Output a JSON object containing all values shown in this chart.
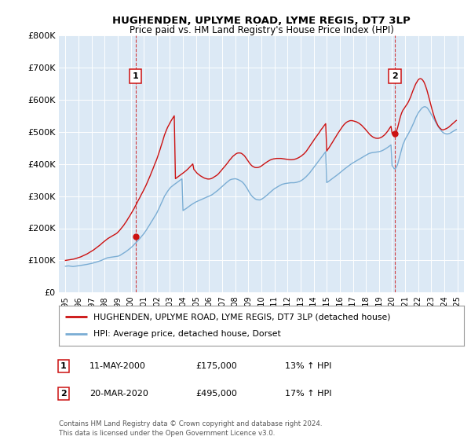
{
  "title": "HUGHENDEN, UPLYME ROAD, LYME REGIS, DT7 3LP",
  "subtitle": "Price paid vs. HM Land Registry's House Price Index (HPI)",
  "background_color": "#ffffff",
  "plot_bg_color": "#dce9f5",
  "grid_color": "#ffffff",
  "house_color": "#cc1111",
  "hpi_color": "#7aadd4",
  "sale1_x": 2000.37,
  "sale1_price": 175000,
  "sale2_x": 2020.22,
  "sale2_price": 495000,
  "legend_house": "HUGHENDEN, UPLYME ROAD, LYME REGIS, DT7 3LP (detached house)",
  "legend_hpi": "HPI: Average price, detached house, Dorset",
  "table_rows": [
    {
      "num": "1",
      "date": "11-MAY-2000",
      "price": "£175,000",
      "hpi": "13% ↑ HPI"
    },
    {
      "num": "2",
      "date": "20-MAR-2020",
      "price": "£495,000",
      "hpi": "17% ↑ HPI"
    }
  ],
  "footer": "Contains HM Land Registry data © Crown copyright and database right 2024.\nThis data is licensed under the Open Government Licence v3.0.",
  "ylim": [
    0,
    800000
  ],
  "yticks": [
    0,
    100000,
    200000,
    300000,
    400000,
    500000,
    600000,
    700000,
    800000
  ],
  "ytick_labels": [
    "£0",
    "£100K",
    "£200K",
    "£300K",
    "£400K",
    "£500K",
    "£600K",
    "£700K",
    "£800K"
  ],
  "hpi_years": [
    1995.0,
    1995.08,
    1995.17,
    1995.25,
    1995.33,
    1995.42,
    1995.5,
    1995.58,
    1995.67,
    1995.75,
    1995.83,
    1995.92,
    1996.0,
    1996.08,
    1996.17,
    1996.25,
    1996.33,
    1996.42,
    1996.5,
    1996.58,
    1996.67,
    1996.75,
    1996.83,
    1996.92,
    1997.0,
    1997.08,
    1997.17,
    1997.25,
    1997.33,
    1997.42,
    1997.5,
    1997.58,
    1997.67,
    1997.75,
    1997.83,
    1997.92,
    1998.0,
    1998.08,
    1998.17,
    1998.25,
    1998.33,
    1998.42,
    1998.5,
    1998.58,
    1998.67,
    1998.75,
    1998.83,
    1998.92,
    1999.0,
    1999.08,
    1999.17,
    1999.25,
    1999.33,
    1999.42,
    1999.5,
    1999.58,
    1999.67,
    1999.75,
    1999.83,
    1999.92,
    2000.0,
    2000.08,
    2000.17,
    2000.25,
    2000.33,
    2000.42,
    2000.5,
    2000.58,
    2000.67,
    2000.75,
    2000.83,
    2000.92,
    2001.0,
    2001.08,
    2001.17,
    2001.25,
    2001.33,
    2001.42,
    2001.5,
    2001.58,
    2001.67,
    2001.75,
    2001.83,
    2001.92,
    2002.0,
    2002.08,
    2002.17,
    2002.25,
    2002.33,
    2002.42,
    2002.5,
    2002.58,
    2002.67,
    2002.75,
    2002.83,
    2002.92,
    2003.0,
    2003.08,
    2003.17,
    2003.25,
    2003.33,
    2003.42,
    2003.5,
    2003.58,
    2003.67,
    2003.75,
    2003.83,
    2003.92,
    2004.0,
    2004.08,
    2004.17,
    2004.25,
    2004.33,
    2004.42,
    2004.5,
    2004.58,
    2004.67,
    2004.75,
    2004.83,
    2004.92,
    2005.0,
    2005.08,
    2005.17,
    2005.25,
    2005.33,
    2005.42,
    2005.5,
    2005.58,
    2005.67,
    2005.75,
    2005.83,
    2005.92,
    2006.0,
    2006.08,
    2006.17,
    2006.25,
    2006.33,
    2006.42,
    2006.5,
    2006.58,
    2006.67,
    2006.75,
    2006.83,
    2006.92,
    2007.0,
    2007.08,
    2007.17,
    2007.25,
    2007.33,
    2007.42,
    2007.5,
    2007.58,
    2007.67,
    2007.75,
    2007.83,
    2007.92,
    2008.0,
    2008.08,
    2008.17,
    2008.25,
    2008.33,
    2008.42,
    2008.5,
    2008.58,
    2008.67,
    2008.75,
    2008.83,
    2008.92,
    2009.0,
    2009.08,
    2009.17,
    2009.25,
    2009.33,
    2009.42,
    2009.5,
    2009.58,
    2009.67,
    2009.75,
    2009.83,
    2009.92,
    2010.0,
    2010.08,
    2010.17,
    2010.25,
    2010.33,
    2010.42,
    2010.5,
    2010.58,
    2010.67,
    2010.75,
    2010.83,
    2010.92,
    2011.0,
    2011.08,
    2011.17,
    2011.25,
    2011.33,
    2011.42,
    2011.5,
    2011.58,
    2011.67,
    2011.75,
    2011.83,
    2011.92,
    2012.0,
    2012.08,
    2012.17,
    2012.25,
    2012.33,
    2012.42,
    2012.5,
    2012.58,
    2012.67,
    2012.75,
    2012.83,
    2012.92,
    2013.0,
    2013.08,
    2013.17,
    2013.25,
    2013.33,
    2013.42,
    2013.5,
    2013.58,
    2013.67,
    2013.75,
    2013.83,
    2013.92,
    2014.0,
    2014.08,
    2014.17,
    2014.25,
    2014.33,
    2014.42,
    2014.5,
    2014.58,
    2014.67,
    2014.75,
    2014.83,
    2014.92,
    2015.0,
    2015.08,
    2015.17,
    2015.25,
    2015.33,
    2015.42,
    2015.5,
    2015.58,
    2015.67,
    2015.75,
    2015.83,
    2015.92,
    2016.0,
    2016.08,
    2016.17,
    2016.25,
    2016.33,
    2016.42,
    2016.5,
    2016.58,
    2016.67,
    2016.75,
    2016.83,
    2016.92,
    2017.0,
    2017.08,
    2017.17,
    2017.25,
    2017.33,
    2017.42,
    2017.5,
    2017.58,
    2017.67,
    2017.75,
    2017.83,
    2017.92,
    2018.0,
    2018.08,
    2018.17,
    2018.25,
    2018.33,
    2018.42,
    2018.5,
    2018.58,
    2018.67,
    2018.75,
    2018.83,
    2018.92,
    2019.0,
    2019.08,
    2019.17,
    2019.25,
    2019.33,
    2019.42,
    2019.5,
    2019.58,
    2019.67,
    2019.75,
    2019.83,
    2019.92,
    2020.0,
    2020.08,
    2020.17,
    2020.25,
    2020.33,
    2020.42,
    2020.5,
    2020.58,
    2020.67,
    2020.75,
    2020.83,
    2020.92,
    2021.0,
    2021.08,
    2021.17,
    2021.25,
    2021.33,
    2021.42,
    2021.5,
    2021.58,
    2021.67,
    2021.75,
    2021.83,
    2021.92,
    2022.0,
    2022.08,
    2022.17,
    2022.25,
    2022.33,
    2022.42,
    2022.5,
    2022.58,
    2022.67,
    2022.75,
    2022.83,
    2022.92,
    2023.0,
    2023.08,
    2023.17,
    2023.25,
    2023.33,
    2023.42,
    2023.5,
    2023.58,
    2023.67,
    2023.75,
    2023.83,
    2023.92,
    2024.0,
    2024.08,
    2024.17,
    2024.25,
    2024.33,
    2024.42,
    2024.5,
    2024.58,
    2024.67,
    2024.75,
    2024.83,
    2024.92
  ],
  "hpi_vals": [
    82000,
    82500,
    82800,
    83000,
    82500,
    82000,
    81500,
    81000,
    81500,
    82000,
    82500,
    83000,
    83500,
    84000,
    84500,
    85000,
    85500,
    86000,
    86500,
    87000,
    87800,
    88500,
    89200,
    90000,
    90800,
    91500,
    92500,
    93500,
    94500,
    95500,
    96500,
    97500,
    98800,
    100000,
    101500,
    103000,
    104500,
    106000,
    107500,
    108500,
    109000,
    109500,
    110000,
    110500,
    111000,
    111500,
    112000,
    112500,
    113000,
    114000,
    115500,
    117500,
    119500,
    121500,
    123500,
    126000,
    128500,
    131000,
    133500,
    136000,
    139000,
    142000,
    145500,
    149000,
    152500,
    156000,
    159500,
    163000,
    167000,
    171000,
    175000,
    179000,
    183000,
    188000,
    193000,
    198000,
    203500,
    209000,
    214500,
    220000,
    225500,
    231000,
    236500,
    242000,
    248000,
    255000,
    262000,
    269500,
    277000,
    284500,
    292000,
    299500,
    305000,
    310500,
    315500,
    320000,
    324500,
    328000,
    331000,
    333500,
    336000,
    338500,
    341000,
    343500,
    346000,
    348500,
    351000,
    353500,
    255000,
    257000,
    259000,
    261500,
    264000,
    266500,
    269000,
    271500,
    274000,
    276000,
    278000,
    280000,
    282000,
    283500,
    285000,
    286500,
    288000,
    289500,
    291000,
    292500,
    294000,
    295500,
    297000,
    298500,
    300000,
    301500,
    303000,
    305000,
    307500,
    310000,
    312500,
    315000,
    318000,
    321000,
    324000,
    327000,
    330000,
    333000,
    336000,
    339000,
    342000,
    345000,
    348000,
    350000,
    351500,
    352500,
    353000,
    353500,
    354000,
    353000,
    352000,
    350500,
    349000,
    347000,
    345000,
    342000,
    338000,
    333500,
    328500,
    323000,
    317000,
    311000,
    305500,
    301000,
    297500,
    294500,
    292000,
    290000,
    289000,
    288500,
    288000,
    288500,
    290000,
    292000,
    294500,
    297000,
    299500,
    302500,
    305500,
    308500,
    311500,
    314500,
    317500,
    320500,
    323000,
    325000,
    327000,
    329000,
    331000,
    333000,
    335000,
    336500,
    337500,
    338500,
    339000,
    339500,
    340000,
    340500,
    341000,
    341500,
    341500,
    341500,
    341500,
    342000,
    342500,
    343500,
    344500,
    345500,
    347000,
    349000,
    351500,
    354000,
    357000,
    360000,
    363500,
    367000,
    371000,
    375000,
    379500,
    384000,
    388500,
    393000,
    397500,
    402000,
    406500,
    411000,
    415500,
    420000,
    424500,
    429000,
    433500,
    438000,
    342000,
    344000,
    346500,
    349000,
    351500,
    354000,
    356500,
    359000,
    361500,
    364000,
    366500,
    369000,
    372000,
    375000,
    378000,
    381000,
    383500,
    386000,
    388500,
    391000,
    393500,
    396000,
    398500,
    401000,
    403000,
    405000,
    407000,
    409000,
    411000,
    413000,
    415000,
    417000,
    419000,
    421000,
    423000,
    425000,
    427000,
    429000,
    431000,
    432500,
    433500,
    434500,
    435000,
    435500,
    436000,
    436500,
    437000,
    437500,
    438000,
    439000,
    440000,
    441500,
    443000,
    445000,
    447000,
    449000,
    451500,
    454000,
    456500,
    459000,
    395000,
    390000,
    385000,
    385000,
    390000,
    398000,
    410000,
    422000,
    435000,
    448000,
    460000,
    468000,
    476000,
    482000,
    488000,
    494000,
    500000,
    507000,
    514000,
    521000,
    529000,
    537000,
    545000,
    552000,
    558000,
    563000,
    568000,
    572000,
    575000,
    577000,
    578000,
    577000,
    575000,
    571000,
    566000,
    560000,
    554000,
    548000,
    542000,
    536000,
    530000,
    524000,
    518000,
    513000,
    508000,
    504000,
    500000,
    497000,
    495000,
    494000,
    493000,
    493000,
    494000,
    495000,
    497000,
    499000,
    501000,
    503000,
    505000,
    507000
  ],
  "house_years": [
    1995.0,
    1995.08,
    1995.17,
    1995.25,
    1995.33,
    1995.42,
    1995.5,
    1995.58,
    1995.67,
    1995.75,
    1995.83,
    1995.92,
    1996.0,
    1996.08,
    1996.17,
    1996.25,
    1996.33,
    1996.42,
    1996.5,
    1996.58,
    1996.67,
    1996.75,
    1996.83,
    1996.92,
    1997.0,
    1997.08,
    1997.17,
    1997.25,
    1997.33,
    1997.42,
    1997.5,
    1997.58,
    1997.67,
    1997.75,
    1997.83,
    1997.92,
    1998.0,
    1998.08,
    1998.17,
    1998.25,
    1998.33,
    1998.42,
    1998.5,
    1998.58,
    1998.67,
    1998.75,
    1998.83,
    1998.92,
    1999.0,
    1999.08,
    1999.17,
    1999.25,
    1999.33,
    1999.42,
    1999.5,
    1999.58,
    1999.67,
    1999.75,
    1999.83,
    1999.92,
    2000.0,
    2000.08,
    2000.17,
    2000.25,
    2000.33,
    2000.42,
    2000.5,
    2000.58,
    2000.67,
    2000.75,
    2000.83,
    2000.92,
    2001.0,
    2001.08,
    2001.17,
    2001.25,
    2001.33,
    2001.42,
    2001.5,
    2001.58,
    2001.67,
    2001.75,
    2001.83,
    2001.92,
    2002.0,
    2002.08,
    2002.17,
    2002.25,
    2002.33,
    2002.42,
    2002.5,
    2002.58,
    2002.67,
    2002.75,
    2002.83,
    2002.92,
    2003.0,
    2003.08,
    2003.17,
    2003.25,
    2003.33,
    2003.42,
    2003.5,
    2003.58,
    2003.67,
    2003.75,
    2003.83,
    2003.92,
    2004.0,
    2004.08,
    2004.17,
    2004.25,
    2004.33,
    2004.42,
    2004.5,
    2004.58,
    2004.67,
    2004.75,
    2004.83,
    2004.92,
    2005.0,
    2005.08,
    2005.17,
    2005.25,
    2005.33,
    2005.42,
    2005.5,
    2005.58,
    2005.67,
    2005.75,
    2005.83,
    2005.92,
    2006.0,
    2006.08,
    2006.17,
    2006.25,
    2006.33,
    2006.42,
    2006.5,
    2006.58,
    2006.67,
    2006.75,
    2006.83,
    2006.92,
    2007.0,
    2007.08,
    2007.17,
    2007.25,
    2007.33,
    2007.42,
    2007.5,
    2007.58,
    2007.67,
    2007.75,
    2007.83,
    2007.92,
    2008.0,
    2008.08,
    2008.17,
    2008.25,
    2008.33,
    2008.42,
    2008.5,
    2008.58,
    2008.67,
    2008.75,
    2008.83,
    2008.92,
    2009.0,
    2009.08,
    2009.17,
    2009.25,
    2009.33,
    2009.42,
    2009.5,
    2009.58,
    2009.67,
    2009.75,
    2009.83,
    2009.92,
    2010.0,
    2010.08,
    2010.17,
    2010.25,
    2010.33,
    2010.42,
    2010.5,
    2010.58,
    2010.67,
    2010.75,
    2010.83,
    2010.92,
    2011.0,
    2011.08,
    2011.17,
    2011.25,
    2011.33,
    2011.42,
    2011.5,
    2011.58,
    2011.67,
    2011.75,
    2011.83,
    2011.92,
    2012.0,
    2012.08,
    2012.17,
    2012.25,
    2012.33,
    2012.42,
    2012.5,
    2012.58,
    2012.67,
    2012.75,
    2012.83,
    2012.92,
    2013.0,
    2013.08,
    2013.17,
    2013.25,
    2013.33,
    2013.42,
    2013.5,
    2013.58,
    2013.67,
    2013.75,
    2013.83,
    2013.92,
    2014.0,
    2014.08,
    2014.17,
    2014.25,
    2014.33,
    2014.42,
    2014.5,
    2014.58,
    2014.67,
    2014.75,
    2014.83,
    2014.92,
    2015.0,
    2015.08,
    2015.17,
    2015.25,
    2015.33,
    2015.42,
    2015.5,
    2015.58,
    2015.67,
    2015.75,
    2015.83,
    2015.92,
    2016.0,
    2016.08,
    2016.17,
    2016.25,
    2016.33,
    2016.42,
    2016.5,
    2016.58,
    2016.67,
    2016.75,
    2016.83,
    2016.92,
    2017.0,
    2017.08,
    2017.17,
    2017.25,
    2017.33,
    2017.42,
    2017.5,
    2017.58,
    2017.67,
    2017.75,
    2017.83,
    2017.92,
    2018.0,
    2018.08,
    2018.17,
    2018.25,
    2018.33,
    2018.42,
    2018.5,
    2018.58,
    2018.67,
    2018.75,
    2018.83,
    2018.92,
    2019.0,
    2019.08,
    2019.17,
    2019.25,
    2019.33,
    2019.42,
    2019.5,
    2019.58,
    2019.67,
    2019.75,
    2019.83,
    2019.92,
    2020.0,
    2020.08,
    2020.17,
    2020.25,
    2020.33,
    2020.42,
    2020.5,
    2020.58,
    2020.67,
    2020.75,
    2020.83,
    2020.92,
    2021.0,
    2021.08,
    2021.17,
    2021.25,
    2021.33,
    2021.42,
    2021.5,
    2021.58,
    2021.67,
    2021.75,
    2021.83,
    2021.92,
    2022.0,
    2022.08,
    2022.17,
    2022.25,
    2022.33,
    2022.42,
    2022.5,
    2022.58,
    2022.67,
    2022.75,
    2022.83,
    2022.92,
    2023.0,
    2023.08,
    2023.17,
    2023.25,
    2023.33,
    2023.42,
    2023.5,
    2023.58,
    2023.67,
    2023.75,
    2023.83,
    2023.92,
    2024.0,
    2024.08,
    2024.17,
    2024.25,
    2024.33,
    2024.42,
    2024.5,
    2024.58,
    2024.67,
    2024.75,
    2024.83,
    2024.92
  ],
  "house_vals": [
    100000,
    100500,
    101000,
    101500,
    102000,
    102500,
    103000,
    103800,
    104500,
    105500,
    106500,
    107500,
    108500,
    109500,
    111000,
    112500,
    114000,
    115500,
    117000,
    118800,
    120500,
    122500,
    124500,
    126500,
    128500,
    130500,
    133000,
    135500,
    138000,
    140500,
    143000,
    145800,
    148500,
    151500,
    154500,
    157500,
    160500,
    163000,
    165500,
    168000,
    170000,
    172000,
    174000,
    176000,
    178000,
    180000,
    182000,
    184000,
    187000,
    190500,
    194500,
    198500,
    202500,
    207000,
    211500,
    216500,
    221500,
    227000,
    232500,
    238000,
    243500,
    249000,
    255000,
    261000,
    267500,
    274000,
    280500,
    287000,
    293500,
    300000,
    306500,
    313000,
    319500,
    326500,
    333500,
    341000,
    348500,
    356500,
    364500,
    373000,
    381500,
    390000,
    398500,
    407000,
    415500,
    425000,
    435000,
    445500,
    456500,
    467500,
    478500,
    489500,
    499000,
    507000,
    514500,
    521000,
    527500,
    533500,
    539500,
    544500,
    549500,
    354000,
    356500,
    359000,
    361500,
    364000,
    366500,
    369000,
    371500,
    374000,
    376500,
    379500,
    382500,
    386000,
    389500,
    393000,
    396500,
    400000,
    383000,
    379000,
    375000,
    371000,
    368000,
    365500,
    363000,
    361000,
    359000,
    357000,
    355500,
    354500,
    353500,
    353000,
    353000,
    353500,
    354500,
    356000,
    358000,
    360000,
    362000,
    364500,
    367500,
    371000,
    375000,
    379000,
    383000,
    387000,
    391000,
    395000,
    399000,
    403500,
    408000,
    412500,
    416500,
    420500,
    424000,
    427000,
    430000,
    432000,
    433500,
    434000,
    434000,
    433500,
    432000,
    429500,
    426500,
    422500,
    418000,
    413000,
    408000,
    403000,
    398500,
    395000,
    392500,
    390500,
    389000,
    388500,
    388500,
    389000,
    390000,
    391500,
    393500,
    396000,
    398500,
    401000,
    403500,
    406000,
    408000,
    410000,
    412000,
    413500,
    414500,
    415500,
    416000,
    416500,
    417000,
    417000,
    417000,
    417000,
    417000,
    416500,
    416000,
    415500,
    415000,
    414500,
    414000,
    413500,
    413000,
    413000,
    413000,
    413500,
    414000,
    415000,
    416000,
    417500,
    419000,
    421000,
    423000,
    425500,
    428000,
    431000,
    434500,
    438500,
    443000,
    448000,
    453000,
    458000,
    463000,
    468000,
    473000,
    478000,
    483000,
    487500,
    492000,
    497000,
    502000,
    507000,
    511500,
    516000,
    520500,
    525000,
    440000,
    445000,
    450000,
    455000,
    460500,
    466000,
    471500,
    477000,
    482500,
    488000,
    493500,
    499000,
    504000,
    509000,
    514000,
    518500,
    522500,
    526000,
    529000,
    531000,
    532500,
    534000,
    534500,
    534500,
    534000,
    533000,
    532000,
    531000,
    529500,
    527500,
    525500,
    523000,
    520000,
    516500,
    513000,
    509500,
    505500,
    501500,
    497500,
    493500,
    490000,
    487000,
    484500,
    482500,
    481000,
    480000,
    479500,
    479500,
    480000,
    481000,
    482500,
    484500,
    487000,
    490000,
    493500,
    497500,
    502000,
    507000,
    512000,
    517000,
    495000,
    490000,
    485000,
    490000,
    500000,
    512000,
    525000,
    538000,
    551000,
    560000,
    567000,
    572000,
    577000,
    582000,
    587000,
    593000,
    600000,
    608000,
    617000,
    626000,
    635000,
    643000,
    650000,
    656000,
    661000,
    664000,
    665000,
    664000,
    661000,
    656000,
    649000,
    640000,
    629000,
    617000,
    604000,
    591000,
    578000,
    566000,
    554000,
    544000,
    535000,
    527000,
    520000,
    515000,
    511000,
    508000,
    506000,
    506000,
    507000,
    508500,
    510000,
    512000,
    514000,
    517000,
    520000,
    523000,
    526000,
    529000,
    532000,
    535000
  ]
}
